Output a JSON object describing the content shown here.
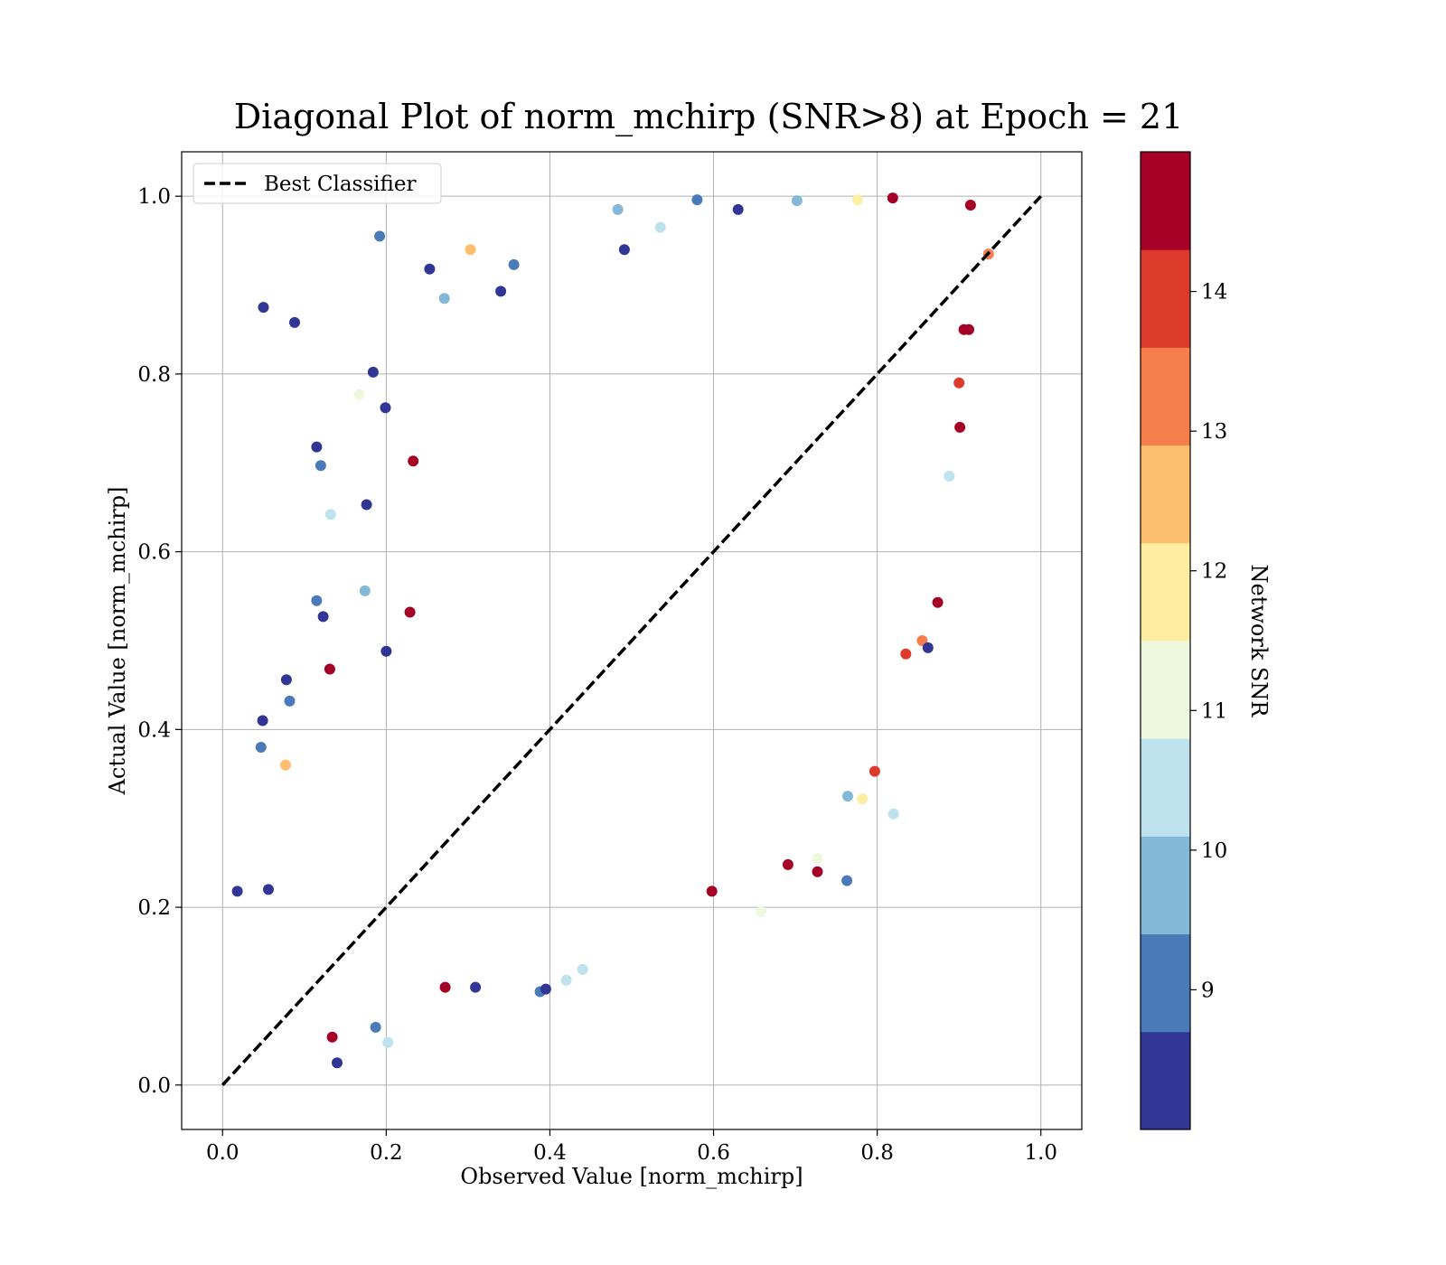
{
  "chart_data": {
    "type": "scatter",
    "title": "Diagonal Plot of norm_mchirp (SNR>8) at Epoch = 21",
    "xlabel": "Observed Value [norm_mchirp]",
    "ylabel": "Actual Value [norm_mchirp]",
    "xlim": [
      -0.05,
      1.05
    ],
    "ylim": [
      -0.05,
      1.05
    ],
    "xticks": [
      "0.0",
      "0.2",
      "0.4",
      "0.6",
      "0.8",
      "1.0"
    ],
    "yticks": [
      "0.0",
      "0.2",
      "0.4",
      "0.6",
      "0.8",
      "1.0"
    ],
    "grid": true,
    "legend": {
      "placement": "top-left",
      "entries": [
        "Best Classifier"
      ]
    },
    "reference_line": {
      "name": "Best Classifier",
      "x": [
        0.0,
        1.0
      ],
      "y": [
        0.0,
        1.0
      ],
      "style": "dashed",
      "color": "#000000"
    },
    "colorbar": {
      "label": "Network SNR",
      "range": [
        8.0,
        15.0
      ],
      "ticks": [
        "9",
        "10",
        "11",
        "12",
        "13",
        "14"
      ],
      "bins": [
        {
          "from": 8.0,
          "to": 8.7,
          "color": "#313695"
        },
        {
          "from": 8.7,
          "to": 9.4,
          "color": "#4a7ab7"
        },
        {
          "from": 9.4,
          "to": 10.1,
          "color": "#83b8d7"
        },
        {
          "from": 10.1,
          "to": 10.8,
          "color": "#bee2ee"
        },
        {
          "from": 10.8,
          "to": 11.5,
          "color": "#eef8df"
        },
        {
          "from": 11.5,
          "to": 12.2,
          "color": "#feeea2"
        },
        {
          "from": 12.2,
          "to": 12.9,
          "color": "#fdbf6f"
        },
        {
          "from": 12.9,
          "to": 13.6,
          "color": "#f67e4b"
        },
        {
          "from": 13.6,
          "to": 14.3,
          "color": "#dc3b2c"
        },
        {
          "from": 14.3,
          "to": 15.0,
          "color": "#a50026"
        }
      ]
    },
    "series": [
      {
        "encoding": "color = Network SNR",
        "points": [
          {
            "x": 0.05,
            "y": 0.875,
            "snr": 8.2
          },
          {
            "x": 0.088,
            "y": 0.858,
            "snr": 8.2
          },
          {
            "x": 0.192,
            "y": 0.955,
            "snr": 9.0
          },
          {
            "x": 0.253,
            "y": 0.918,
            "snr": 8.2
          },
          {
            "x": 0.303,
            "y": 0.94,
            "snr": 12.4
          },
          {
            "x": 0.356,
            "y": 0.923,
            "snr": 9.0
          },
          {
            "x": 0.34,
            "y": 0.893,
            "snr": 8.2
          },
          {
            "x": 0.271,
            "y": 0.885,
            "snr": 9.6
          },
          {
            "x": 0.184,
            "y": 0.802,
            "snr": 8.2
          },
          {
            "x": 0.167,
            "y": 0.777,
            "snr": 11.2
          },
          {
            "x": 0.199,
            "y": 0.762,
            "snr": 8.2
          },
          {
            "x": 0.233,
            "y": 0.702,
            "snr": 14.6
          },
          {
            "x": 0.115,
            "y": 0.718,
            "snr": 8.2
          },
          {
            "x": 0.12,
            "y": 0.697,
            "snr": 9.0
          },
          {
            "x": 0.176,
            "y": 0.653,
            "snr": 8.2
          },
          {
            "x": 0.132,
            "y": 0.642,
            "snr": 10.2
          },
          {
            "x": 0.115,
            "y": 0.545,
            "snr": 9.0
          },
          {
            "x": 0.123,
            "y": 0.527,
            "snr": 8.2
          },
          {
            "x": 0.174,
            "y": 0.556,
            "snr": 9.6
          },
          {
            "x": 0.2,
            "y": 0.488,
            "snr": 8.2
          },
          {
            "x": 0.229,
            "y": 0.532,
            "snr": 14.6
          },
          {
            "x": 0.131,
            "y": 0.468,
            "snr": 14.6
          },
          {
            "x": 0.078,
            "y": 0.456,
            "snr": 8.2
          },
          {
            "x": 0.082,
            "y": 0.432,
            "snr": 9.0
          },
          {
            "x": 0.049,
            "y": 0.41,
            "snr": 8.2
          },
          {
            "x": 0.047,
            "y": 0.38,
            "snr": 9.0
          },
          {
            "x": 0.077,
            "y": 0.36,
            "snr": 12.6
          },
          {
            "x": 0.018,
            "y": 0.218,
            "snr": 8.2
          },
          {
            "x": 0.056,
            "y": 0.22,
            "snr": 8.2
          },
          {
            "x": 0.134,
            "y": 0.054,
            "snr": 14.6
          },
          {
            "x": 0.14,
            "y": 0.025,
            "snr": 8.2
          },
          {
            "x": 0.187,
            "y": 0.065,
            "snr": 9.0
          },
          {
            "x": 0.202,
            "y": 0.048,
            "snr": 10.2
          },
          {
            "x": 0.272,
            "y": 0.11,
            "snr": 14.6
          },
          {
            "x": 0.309,
            "y": 0.11,
            "snr": 8.2
          },
          {
            "x": 0.388,
            "y": 0.105,
            "snr": 9.0
          },
          {
            "x": 0.395,
            "y": 0.108,
            "snr": 8.2
          },
          {
            "x": 0.42,
            "y": 0.118,
            "snr": 10.2
          },
          {
            "x": 0.44,
            "y": 0.13,
            "snr": 10.2
          },
          {
            "x": 0.598,
            "y": 0.218,
            "snr": 14.6
          },
          {
            "x": 0.658,
            "y": 0.195,
            "snr": 10.8
          },
          {
            "x": 0.763,
            "y": 0.23,
            "snr": 9.0
          },
          {
            "x": 0.727,
            "y": 0.24,
            "snr": 14.6
          },
          {
            "x": 0.727,
            "y": 0.255,
            "snr": 11.2
          },
          {
            "x": 0.691,
            "y": 0.248,
            "snr": 14.6
          },
          {
            "x": 0.782,
            "y": 0.322,
            "snr": 11.8
          },
          {
            "x": 0.82,
            "y": 0.305,
            "snr": 10.6
          },
          {
            "x": 0.797,
            "y": 0.353,
            "snr": 14.2
          },
          {
            "x": 0.764,
            "y": 0.325,
            "snr": 9.6
          },
          {
            "x": 0.874,
            "y": 0.543,
            "snr": 14.6
          },
          {
            "x": 0.855,
            "y": 0.5,
            "snr": 13.0
          },
          {
            "x": 0.862,
            "y": 0.492,
            "snr": 8.2
          },
          {
            "x": 0.835,
            "y": 0.485,
            "snr": 14.2
          },
          {
            "x": 0.483,
            "y": 0.985,
            "snr": 9.6
          },
          {
            "x": 0.491,
            "y": 0.94,
            "snr": 8.2
          },
          {
            "x": 0.535,
            "y": 0.965,
            "snr": 10.4
          },
          {
            "x": 0.58,
            "y": 0.996,
            "snr": 9.0
          },
          {
            "x": 0.63,
            "y": 0.985,
            "snr": 8.2
          },
          {
            "x": 0.702,
            "y": 0.995,
            "snr": 9.6
          },
          {
            "x": 0.776,
            "y": 0.996,
            "snr": 12.0
          },
          {
            "x": 0.819,
            "y": 0.998,
            "snr": 14.6
          },
          {
            "x": 0.914,
            "y": 0.99,
            "snr": 14.6
          },
          {
            "x": 0.936,
            "y": 0.935,
            "snr": 13.2
          },
          {
            "x": 0.906,
            "y": 0.85,
            "snr": 14.6
          },
          {
            "x": 0.901,
            "y": 0.74,
            "snr": 14.6
          },
          {
            "x": 0.888,
            "y": 0.685,
            "snr": 10.4
          },
          {
            "x": 0.9,
            "y": 0.79,
            "snr": 14.0
          },
          {
            "x": 0.912,
            "y": 0.85,
            "snr": 14.6
          }
        ]
      }
    ]
  }
}
